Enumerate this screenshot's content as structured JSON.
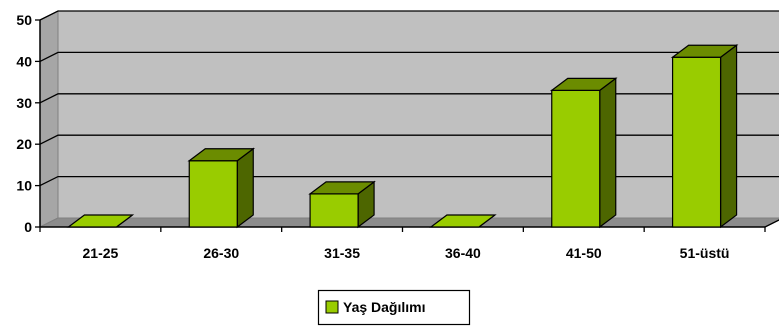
{
  "chart_data": {
    "type": "bar",
    "categories": [
      "21-25",
      "26-30",
      "31-35",
      "36-40",
      "41-50",
      "51-üstü"
    ],
    "series": [
      {
        "name": "Yaş Dağılımı",
        "values": [
          0,
          16,
          8,
          0,
          33,
          41
        ],
        "color": "#99cc00"
      }
    ],
    "yticks": [
      0,
      10,
      20,
      30,
      40,
      50
    ],
    "ylim": [
      0,
      50
    ],
    "grid": true,
    "legend_position": "bottom",
    "wall_color": "#c0c0c0",
    "bar_side_color": "#4d6600",
    "bar_top_color": "#6b8c00"
  }
}
